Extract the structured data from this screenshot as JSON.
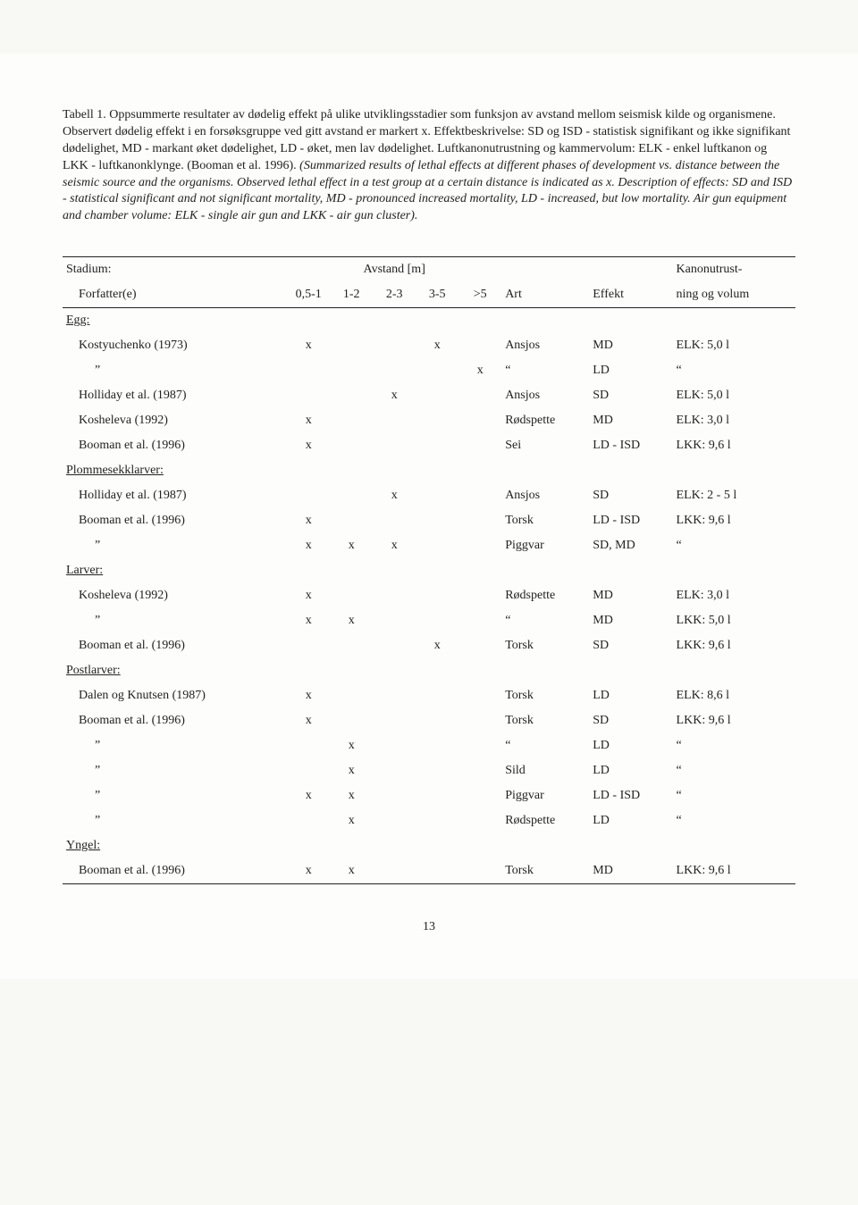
{
  "caption": {
    "label": "Tabell 1.",
    "norwegian": " Oppsummerte resultater av dødelig effekt på ulike utviklingsstadier som funksjon av avstand mellom seismisk kilde og organismene. Observert dødelig effekt i en forsøksgruppe ved gitt avstand er markert x. Effektbeskrivelse: SD og ISD - statistisk signifikant og ikke signifikant dødelighet, MD - markant øket dødelighet, LD - øket, men lav dødelighet. Luftkanonutrustning og kammervolum: ELK - enkel luftkanon og LKK - luftkanonklynge. (Booman et al. 1996). ",
    "english": "(Summarized results of lethal effects at different phases of development vs. distance between the seismic source and the organisms. Observed lethal effect in a test group at a certain distance is indicated as x. Description of effects: SD and ISD - statistical significant and not significant mortality, MD - pronounced increased mortality, LD - increased, but low mortality. Air gun equipment and chamber volume: ELK - single air gun and LKK - air gun cluster)."
  },
  "headers": {
    "stadium": "Stadium:",
    "avstand": "Avstand [m]",
    "kanon": "Kanonutrust-",
    "forfatter": "Forfatter(e)",
    "d1": "0,5-1",
    "d2": "1-2",
    "d3": "2-3",
    "d4": "3-5",
    "d5": ">5",
    "art": "Art",
    "effekt": "Effekt",
    "ning": "ning og volum"
  },
  "sections": {
    "egg": "Egg:",
    "plom": "Plommesekklarver:",
    "larver": "Larver:",
    "postlarver": "Postlarver:",
    "yngel": "Yngel:"
  },
  "rows": {
    "r1": {
      "a": "Kostyuchenko (1973)",
      "d1": "x",
      "d2": "",
      "d3": "",
      "d4": "x",
      "d5": "",
      "art": "Ansjos",
      "eff": "MD",
      "kan": "ELK: 5,0 l"
    },
    "r2": {
      "a": "”",
      "d1": "",
      "d2": "",
      "d3": "",
      "d4": "",
      "d5": "x",
      "art": "“",
      "eff": "LD",
      "kan": "“"
    },
    "r3": {
      "a": "Holliday et al. (1987)",
      "d1": "",
      "d2": "",
      "d3": "x",
      "d4": "",
      "d5": "",
      "art": "Ansjos",
      "eff": "SD",
      "kan": "ELK: 5,0 l"
    },
    "r4": {
      "a": "Kosheleva (1992)",
      "d1": "x",
      "d2": "",
      "d3": "",
      "d4": "",
      "d5": "",
      "art": "Rødspette",
      "eff": "MD",
      "kan": "ELK: 3,0 l"
    },
    "r5": {
      "a": "Booman et al. (1996)",
      "d1": "x",
      "d2": "",
      "d3": "",
      "d4": "",
      "d5": "",
      "art": "Sei",
      "eff": "LD - ISD",
      "kan": "LKK: 9,6 l"
    },
    "r6": {
      "a": "Holliday et al. (1987)",
      "d1": "",
      "d2": "",
      "d3": "x",
      "d4": "",
      "d5": "",
      "art": "Ansjos",
      "eff": "SD",
      "kan": "ELK: 2 - 5 l"
    },
    "r7": {
      "a": "Booman et al. (1996)",
      "d1": "x",
      "d2": "",
      "d3": "",
      "d4": "",
      "d5": "",
      "art": "Torsk",
      "eff": "LD - ISD",
      "kan": "LKK: 9,6 l"
    },
    "r8": {
      "a": "”",
      "d1": "x",
      "d2": "x",
      "d3": "x",
      "d4": "",
      "d5": "",
      "art": "Piggvar",
      "eff": "SD, MD",
      "kan": "“"
    },
    "r9": {
      "a": "Kosheleva (1992)",
      "d1": "x",
      "d2": "",
      "d3": "",
      "d4": "",
      "d5": "",
      "art": "Rødspette",
      "eff": "MD",
      "kan": "ELK: 3,0 l"
    },
    "r10": {
      "a": "”",
      "d1": "x",
      "d2": "x",
      "d3": "",
      "d4": "",
      "d5": "",
      "art": "“",
      "eff": "MD",
      "kan": "LKK: 5,0 l"
    },
    "r11": {
      "a": "Booman et al. (1996)",
      "d1": "",
      "d2": "",
      "d3": "",
      "d4": "x",
      "d5": "",
      "art": "Torsk",
      "eff": "SD",
      "kan": "LKK: 9,6 l"
    },
    "r12": {
      "a": "Dalen og Knutsen (1987)",
      "d1": "x",
      "d2": "",
      "d3": "",
      "d4": "",
      "d5": "",
      "art": "Torsk",
      "eff": "LD",
      "kan": "ELK: 8,6 l"
    },
    "r13": {
      "a": "Booman et al. (1996)",
      "d1": "x",
      "d2": "",
      "d3": "",
      "d4": "",
      "d5": "",
      "art": "Torsk",
      "eff": "SD",
      "kan": "LKK: 9,6 l"
    },
    "r14": {
      "a": "”",
      "d1": "",
      "d2": "x",
      "d3": "",
      "d4": "",
      "d5": "",
      "art": "“",
      "eff": "LD",
      "kan": "“"
    },
    "r15": {
      "a": "”",
      "d1": "",
      "d2": "x",
      "d3": "",
      "d4": "",
      "d5": "",
      "art": "Sild",
      "eff": "LD",
      "kan": "“"
    },
    "r16": {
      "a": "”",
      "d1": "x",
      "d2": "x",
      "d3": "",
      "d4": "",
      "d5": "",
      "art": "Piggvar",
      "eff": "LD - ISD",
      "kan": "“"
    },
    "r17": {
      "a": "”",
      "d1": "",
      "d2": "x",
      "d3": "",
      "d4": "",
      "d5": "",
      "art": "Rødspette",
      "eff": "LD",
      "kan": "“"
    },
    "r18": {
      "a": "Booman et al. (1996)",
      "d1": "x",
      "d2": "x",
      "d3": "",
      "d4": "",
      "d5": "",
      "art": "Torsk",
      "eff": "MD",
      "kan": "LKK: 9,6 l"
    }
  },
  "pagenum": "13"
}
